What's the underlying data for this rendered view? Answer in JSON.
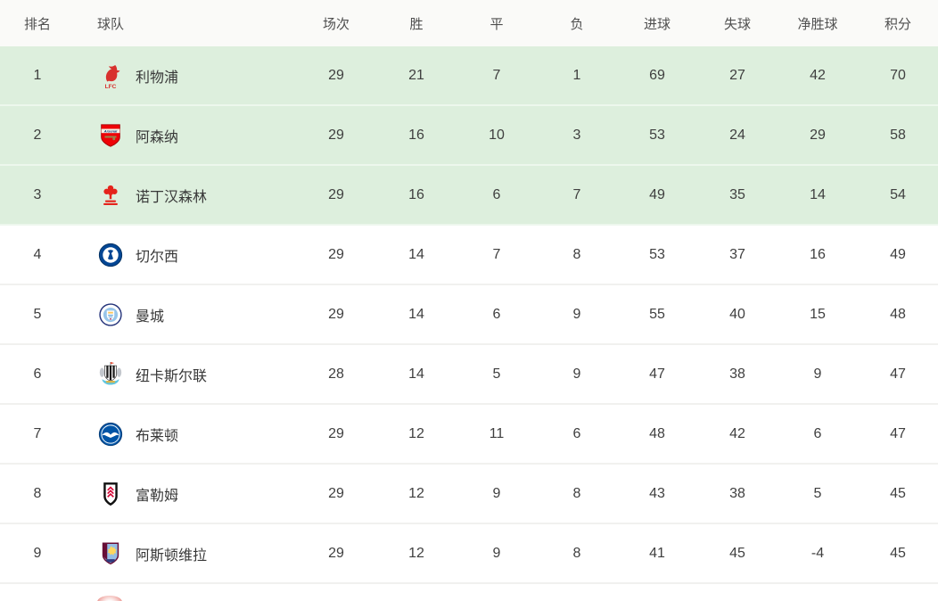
{
  "standings": {
    "columns": [
      {
        "key": "rank",
        "label": "排名"
      },
      {
        "key": "team",
        "label": "球队"
      },
      {
        "key": "played",
        "label": "场次"
      },
      {
        "key": "wins",
        "label": "胜"
      },
      {
        "key": "draws",
        "label": "平"
      },
      {
        "key": "losses",
        "label": "负"
      },
      {
        "key": "goals_for",
        "label": "进球"
      },
      {
        "key": "goals_against",
        "label": "失球"
      },
      {
        "key": "goal_diff",
        "label": "净胜球"
      },
      {
        "key": "points",
        "label": "积分"
      }
    ],
    "rows": [
      {
        "rank": "1",
        "team": "利物浦",
        "logo": "liverpool-crest",
        "played": "29",
        "wins": "21",
        "draws": "7",
        "losses": "1",
        "goals_for": "69",
        "goals_against": "27",
        "goal_diff": "42",
        "points": "70",
        "highlighted": true
      },
      {
        "rank": "2",
        "team": "阿森纳",
        "logo": "arsenal-crest",
        "played": "29",
        "wins": "16",
        "draws": "10",
        "losses": "3",
        "goals_for": "53",
        "goals_against": "24",
        "goal_diff": "29",
        "points": "58",
        "highlighted": true
      },
      {
        "rank": "3",
        "team": "诺丁汉森林",
        "logo": "forest-crest",
        "played": "29",
        "wins": "16",
        "draws": "6",
        "losses": "7",
        "goals_for": "49",
        "goals_against": "35",
        "goal_diff": "14",
        "points": "54",
        "highlighted": true
      },
      {
        "rank": "4",
        "team": "切尔西",
        "logo": "chelsea-crest",
        "played": "29",
        "wins": "14",
        "draws": "7",
        "losses": "8",
        "goals_for": "53",
        "goals_against": "37",
        "goal_diff": "16",
        "points": "49",
        "highlighted": false
      },
      {
        "rank": "5",
        "team": "曼城",
        "logo": "mancity-crest",
        "played": "29",
        "wins": "14",
        "draws": "6",
        "losses": "9",
        "goals_for": "55",
        "goals_against": "40",
        "goal_diff": "15",
        "points": "48",
        "highlighted": false
      },
      {
        "rank": "6",
        "team": "纽卡斯尔联",
        "logo": "newcastle-crest",
        "played": "28",
        "wins": "14",
        "draws": "5",
        "losses": "9",
        "goals_for": "47",
        "goals_against": "38",
        "goal_diff": "9",
        "points": "47",
        "highlighted": false
      },
      {
        "rank": "7",
        "team": "布莱顿",
        "logo": "brighton-crest",
        "played": "29",
        "wins": "12",
        "draws": "11",
        "losses": "6",
        "goals_for": "48",
        "goals_against": "42",
        "goal_diff": "6",
        "points": "47",
        "highlighted": false
      },
      {
        "rank": "8",
        "team": "富勒姆",
        "logo": "fulham-crest",
        "played": "29",
        "wins": "12",
        "draws": "9",
        "losses": "8",
        "goals_for": "43",
        "goals_against": "38",
        "goal_diff": "5",
        "points": "45",
        "highlighted": false
      },
      {
        "rank": "9",
        "team": "阿斯顿维拉",
        "logo": "villa-crest",
        "played": "29",
        "wins": "12",
        "draws": "9",
        "losses": "8",
        "goals_for": "41",
        "goals_against": "45",
        "goal_diff": "-4",
        "points": "45",
        "highlighted": false
      }
    ],
    "partial_row": {
      "visible": true
    },
    "colors": {
      "highlight_row_bg": "#ddefdd",
      "header_bg": "#fafaf8",
      "row_bg": "#ffffff",
      "text": "#3f3f3f"
    }
  }
}
